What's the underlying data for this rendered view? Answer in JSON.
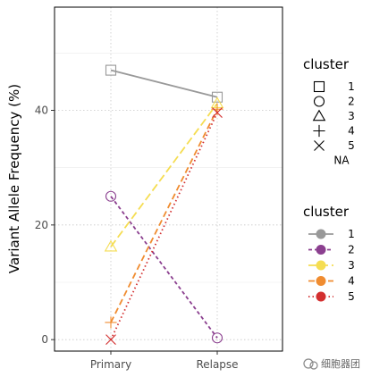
{
  "chart_data": {
    "type": "line",
    "categories": [
      "Primary",
      "Relapse"
    ],
    "ylabel": "Variant Allele Frequency (%)",
    "xlabel": "",
    "ylim": [
      -2,
      58
    ],
    "yticks": [
      0,
      20,
      40
    ],
    "grid": true,
    "series": [
      {
        "name": "1",
        "values": [
          47,
          42.3
        ],
        "color": "#999999",
        "dash": "solid",
        "shape": "square"
      },
      {
        "name": "2",
        "values": [
          25,
          0.3
        ],
        "color": "#8B3F8F",
        "dash": "dashed-short",
        "shape": "circle"
      },
      {
        "name": "3",
        "values": [
          16.2,
          41.2
        ],
        "color": "#F5DD52",
        "dash": "dashed-long",
        "shape": "triangle"
      },
      {
        "name": "4",
        "values": [
          3,
          40.2
        ],
        "color": "#F08C30",
        "dash": "dashed",
        "shape": "plus"
      },
      {
        "name": "5",
        "values": [
          0,
          39.6
        ],
        "color": "#D32F2F",
        "dash": "dotted",
        "shape": "x"
      }
    ],
    "legend_shape": {
      "title": "cluster",
      "entries": [
        "1",
        "2",
        "3",
        "4",
        "5",
        "NA"
      ]
    },
    "legend_color": {
      "title": "cluster",
      "entries": [
        "1",
        "2",
        "3",
        "4",
        "5"
      ]
    },
    "legend_position": "right"
  },
  "watermark": "细胞器团"
}
